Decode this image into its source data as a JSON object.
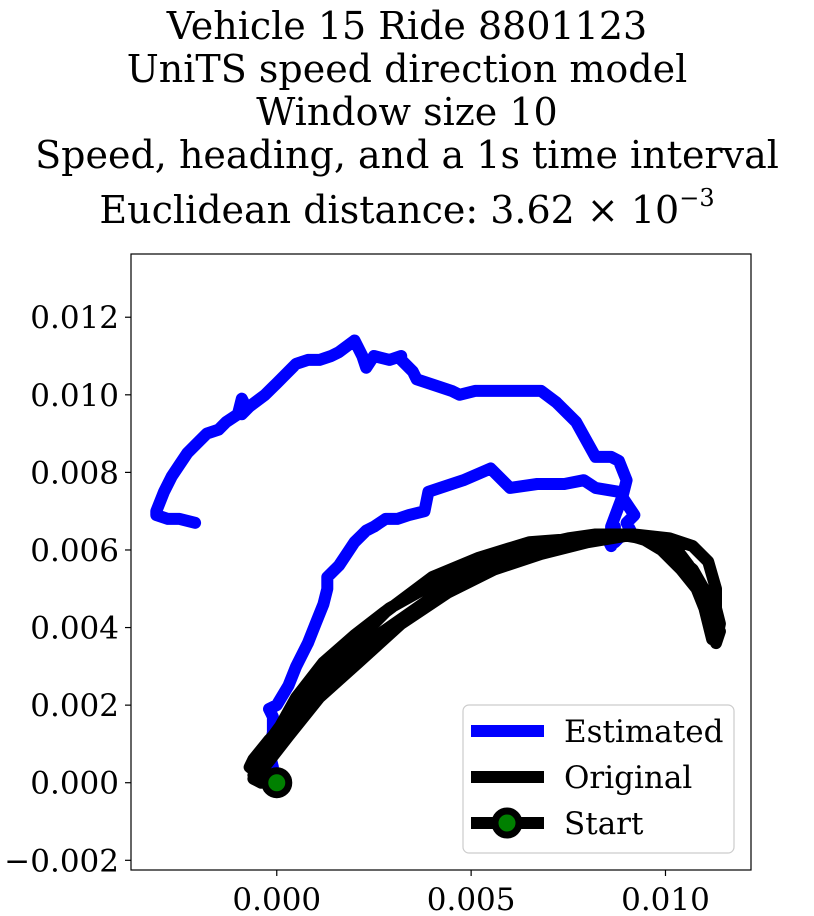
{
  "title": {
    "line1": "Vehicle 15 Ride 8801123",
    "line2": "UniTS speed direction model",
    "line3": "Window size 10",
    "line4": "Speed, heading, and a 1s time interval",
    "line5_prefix": "Euclidean distance: 3.62 × 10",
    "line5_exponent": "−3"
  },
  "chart_data": {
    "type": "line",
    "title": "Vehicle 15 Ride 8801123 / UniTS speed direction model / Window size 10 / Speed, heading, and a 1s time interval / Euclidean distance: 3.62 × 10^−3",
    "xlabel": "",
    "ylabel": "",
    "xlim": [
      -0.00375,
      0.0122
    ],
    "ylim": [
      -0.00225,
      0.01363
    ],
    "grid": false,
    "legend_position": "lower-right",
    "x_ticks": [
      0.0,
      0.005,
      0.01
    ],
    "x_tick_labels": [
      "0.000",
      "0.005",
      "0.010"
    ],
    "y_ticks": [
      -0.002,
      0.0,
      0.002,
      0.004,
      0.006,
      0.008,
      0.01,
      0.012
    ],
    "y_tick_labels": [
      "−0.002",
      "0.000",
      "0.002",
      "0.004",
      "0.006",
      "0.008",
      "0.010",
      "0.012"
    ],
    "series": [
      {
        "name": "Estimated",
        "color": "#0000ff",
        "x": [
          -0.0002,
          -0.0001,
          -0.0002,
          -0.0001,
          -0.0001,
          -0.0002,
          0.0,
          0.0003,
          0.0005,
          0.0008,
          0.001,
          0.0012,
          0.0013,
          0.0013,
          0.0016,
          0.0018,
          0.002,
          0.0022,
          0.0023,
          0.0025,
          0.0028,
          0.0031,
          0.0034,
          0.0038,
          0.0039,
          0.0042,
          0.0048,
          0.0055,
          0.006,
          0.0067,
          0.0074,
          0.0079,
          0.0082,
          0.0088,
          0.0092,
          0.009,
          0.0091,
          0.0088,
          0.0087,
          0.0087,
          0.0085,
          0.0086,
          0.0086,
          0.0086,
          0.0089,
          0.009,
          0.0088,
          0.0086,
          0.0082,
          0.0077,
          0.0072,
          0.0068,
          0.0062,
          0.0057,
          0.0051,
          0.0047,
          0.0045,
          0.0039,
          0.0036,
          0.0035,
          0.0032,
          0.0032,
          0.0029,
          0.0025,
          0.0023,
          0.0022,
          0.002,
          0.0016,
          0.0014,
          0.0011,
          0.0008,
          0.0005,
          0.0,
          -0.0003,
          -0.0007,
          -0.0009,
          -0.0008,
          -0.0009,
          -0.001,
          -0.0013,
          -0.0015,
          -0.0018,
          -0.002,
          -0.0023,
          -0.0025,
          -0.0027,
          -0.0029,
          -0.0031,
          -0.0031,
          -0.0028,
          -0.0025,
          -0.0021
        ],
        "y": [
          0.0,
          0.0004,
          0.0008,
          0.0013,
          0.0017,
          0.0019,
          0.002,
          0.0025,
          0.003,
          0.0036,
          0.0041,
          0.0046,
          0.005,
          0.0053,
          0.0056,
          0.0059,
          0.0062,
          0.0064,
          0.0065,
          0.0066,
          0.0068,
          0.0068,
          0.0069,
          0.007,
          0.0075,
          0.0076,
          0.0078,
          0.0081,
          0.0076,
          0.0077,
          0.0077,
          0.0078,
          0.0076,
          0.0075,
          0.0069,
          0.0067,
          0.0065,
          0.0063,
          0.0062,
          0.0066,
          0.0063,
          0.0061,
          0.0064,
          0.0066,
          0.0074,
          0.0078,
          0.0083,
          0.0084,
          0.0084,
          0.0093,
          0.0098,
          0.0101,
          0.0101,
          0.0101,
          0.0101,
          0.01,
          0.0101,
          0.0103,
          0.0104,
          0.0106,
          0.0109,
          0.011,
          0.0109,
          0.011,
          0.0107,
          0.011,
          0.0114,
          0.0111,
          0.011,
          0.0109,
          0.0109,
          0.0108,
          0.0103,
          0.01,
          0.0097,
          0.0095,
          0.0097,
          0.0099,
          0.0095,
          0.0093,
          0.0091,
          0.009,
          0.0088,
          0.0085,
          0.0082,
          0.0079,
          0.0075,
          0.007,
          0.0069,
          0.0068,
          0.0068,
          0.0067
        ]
      },
      {
        "name": "Original",
        "color": "#000000",
        "x": [
          0.0,
          -0.0004,
          -0.0007,
          -0.0006,
          -0.0002,
          0.0004,
          0.001,
          0.0017,
          0.0026,
          0.0036,
          0.0046,
          0.0056,
          0.0066,
          0.0075,
          0.0082,
          0.0088,
          0.0094,
          0.0099,
          0.0104,
          0.0108,
          0.011,
          0.0112,
          0.0114,
          0.0113,
          0.0114,
          0.0113,
          0.0112,
          0.0113,
          0.0112,
          0.0109,
          0.0106,
          0.0103,
          0.0099,
          0.0092,
          0.0084,
          0.0075,
          0.0066,
          0.0057,
          0.0047,
          0.0038,
          0.0029,
          0.002,
          0.0012,
          0.0005,
          0.0,
          -0.0004,
          -0.0006,
          -0.0004,
          0.0003,
          0.0011,
          0.0021,
          0.0032,
          0.0044,
          0.0056,
          0.0068,
          0.008,
          0.0092,
          0.0101,
          0.0107,
          0.0111,
          0.0113,
          0.0113,
          0.0111,
          0.0107,
          0.01,
          0.009,
          0.0078,
          0.0065,
          0.0052,
          0.004,
          0.0028,
          0.0017,
          0.0007,
          -0.0001,
          -0.0005,
          -0.0006,
          -0.0004
        ],
        "y": [
          0.0,
          0.0002,
          0.0004,
          0.0006,
          0.0011,
          0.0017,
          0.0024,
          0.0031,
          0.0038,
          0.0045,
          0.0052,
          0.0057,
          0.006,
          0.0063,
          0.0064,
          0.0064,
          0.0063,
          0.006,
          0.0055,
          0.005,
          0.0045,
          0.0041,
          0.0039,
          0.0036,
          0.0041,
          0.0045,
          0.005,
          0.0039,
          0.0037,
          0.0049,
          0.0056,
          0.006,
          0.0062,
          0.0064,
          0.0064,
          0.0063,
          0.0061,
          0.0058,
          0.0054,
          0.005,
          0.0045,
          0.0038,
          0.0031,
          0.0022,
          0.0013,
          0.0006,
          0.0002,
          0.0003,
          0.0012,
          0.0022,
          0.0031,
          0.0041,
          0.0049,
          0.0055,
          0.0059,
          0.0062,
          0.0064,
          0.0063,
          0.0061,
          0.0057,
          0.005,
          0.0042,
          0.0048,
          0.0055,
          0.0061,
          0.0064,
          0.0063,
          0.0062,
          0.0058,
          0.0053,
          0.0044,
          0.0033,
          0.0023,
          0.0012,
          0.0005,
          0.0001,
          0.0
        ]
      }
    ],
    "start_point": {
      "name": "Start",
      "x": 0.0,
      "y": 0.0,
      "marker_face": "#008000",
      "marker_edge": "#000000"
    }
  }
}
